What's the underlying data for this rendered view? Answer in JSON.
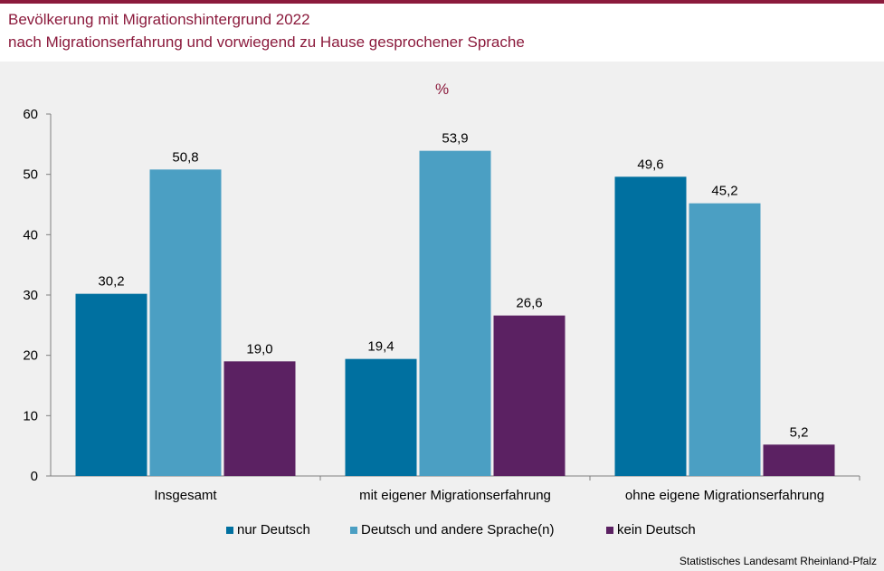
{
  "header": {
    "title_line1": "Bevölkerung mit Migrationshintergrund 2022",
    "title_line2": "nach Migrationserfahrung und vorwiegend zu Hause gesprochener Sprache"
  },
  "colors": {
    "title": "#8b1a3c",
    "accent_bar": "#8b1a3c",
    "nur_deutsch": "#0070a0",
    "deutsch_und_andere": "#4b9fc3",
    "kein_deutsch": "#5b2162"
  },
  "chart_data": {
    "type": "bar",
    "unit_label": "%",
    "categories": [
      "Insgesamt",
      "mit eigener Migrationserfahrung",
      "ohne eigene Migrationserfahrung"
    ],
    "series": [
      {
        "name": "nur Deutsch",
        "values": [
          30.2,
          19.4,
          49.6
        ],
        "labels": [
          "30,2",
          "19,4",
          "49,6"
        ],
        "color": "#0070a0"
      },
      {
        "name": "Deutsch und andere Sprache(n)",
        "values": [
          50.8,
          53.9,
          45.2
        ],
        "labels": [
          "50,8",
          "53,9",
          "45,2"
        ],
        "color": "#4b9fc3"
      },
      {
        "name": "kein Deutsch",
        "values": [
          19.0,
          26.6,
          5.2
        ],
        "labels": [
          "19,0",
          "26,6",
          "5,2"
        ],
        "color": "#5b2162"
      }
    ],
    "ylim": [
      0,
      60
    ],
    "yticks": [
      "0",
      "10",
      "20",
      "30",
      "40",
      "50",
      "60"
    ],
    "grid": false,
    "legend_position": "bottom"
  },
  "source": "Statistisches Landesamt Rheinland-Pfalz"
}
